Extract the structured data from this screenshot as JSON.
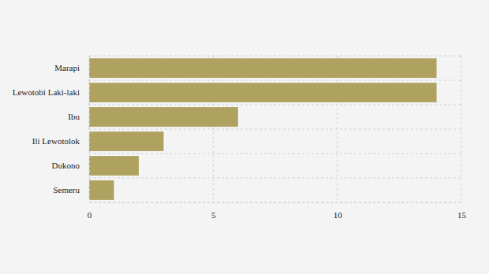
{
  "chart_data": {
    "type": "bar",
    "orientation": "horizontal",
    "categories": [
      "Marapi",
      "Lewotobi Laki-laki",
      "Ibu",
      "Ili Lewotolok",
      "Dukono",
      "Semeru"
    ],
    "values": [
      14,
      14,
      6,
      3,
      2,
      1
    ],
    "color": "#afa160",
    "xlim": [
      0,
      15
    ],
    "xticks": [
      0,
      5,
      10,
      15
    ],
    "grid": true
  }
}
